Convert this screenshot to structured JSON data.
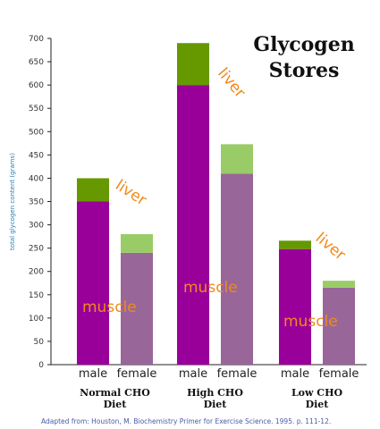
{
  "chart_data": {
    "type": "bar",
    "stacked": true,
    "title_lines": [
      "Glycogen",
      "Stores"
    ],
    "ylabel": "total glycogen content (grams)",
    "ylim": [
      0,
      700
    ],
    "yticks": [
      0,
      50,
      100,
      150,
      200,
      250,
      300,
      350,
      400,
      450,
      500,
      550,
      600,
      650,
      700
    ],
    "groups": [
      {
        "label_lines": [
          "Normal CHO",
          "Diet"
        ],
        "bars": [
          {
            "category": "male",
            "muscle": 350,
            "liver": 50
          },
          {
            "category": "female",
            "muscle": 240,
            "liver": 40
          }
        ],
        "annotations": {
          "liver": "liver",
          "muscle": "muscle"
        }
      },
      {
        "label_lines": [
          "High CHO",
          "Diet"
        ],
        "bars": [
          {
            "category": "male",
            "muscle": 600,
            "liver": 90
          },
          {
            "category": "female",
            "muscle": 410,
            "liver": 63
          }
        ],
        "annotations": {
          "liver": "liver",
          "muscle": "muscle"
        }
      },
      {
        "label_lines": [
          "Low CHO",
          "Diet"
        ],
        "bars": [
          {
            "category": "male",
            "muscle": 248,
            "liver": 18
          },
          {
            "category": "female",
            "muscle": 165,
            "liver": 15
          }
        ],
        "annotations": {
          "liver": "liver",
          "muscle": "muscle"
        }
      }
    ],
    "colors": {
      "male_muscle": "#990099",
      "male_liver": "#669900",
      "female_muscle": "#996699",
      "female_liver": "#99cc66",
      "annotation": "#f08a1c"
    },
    "source": "Adapted from: Houston, M. Biochemistry Primer for Exercise Science. 1995. p. 111-12."
  }
}
